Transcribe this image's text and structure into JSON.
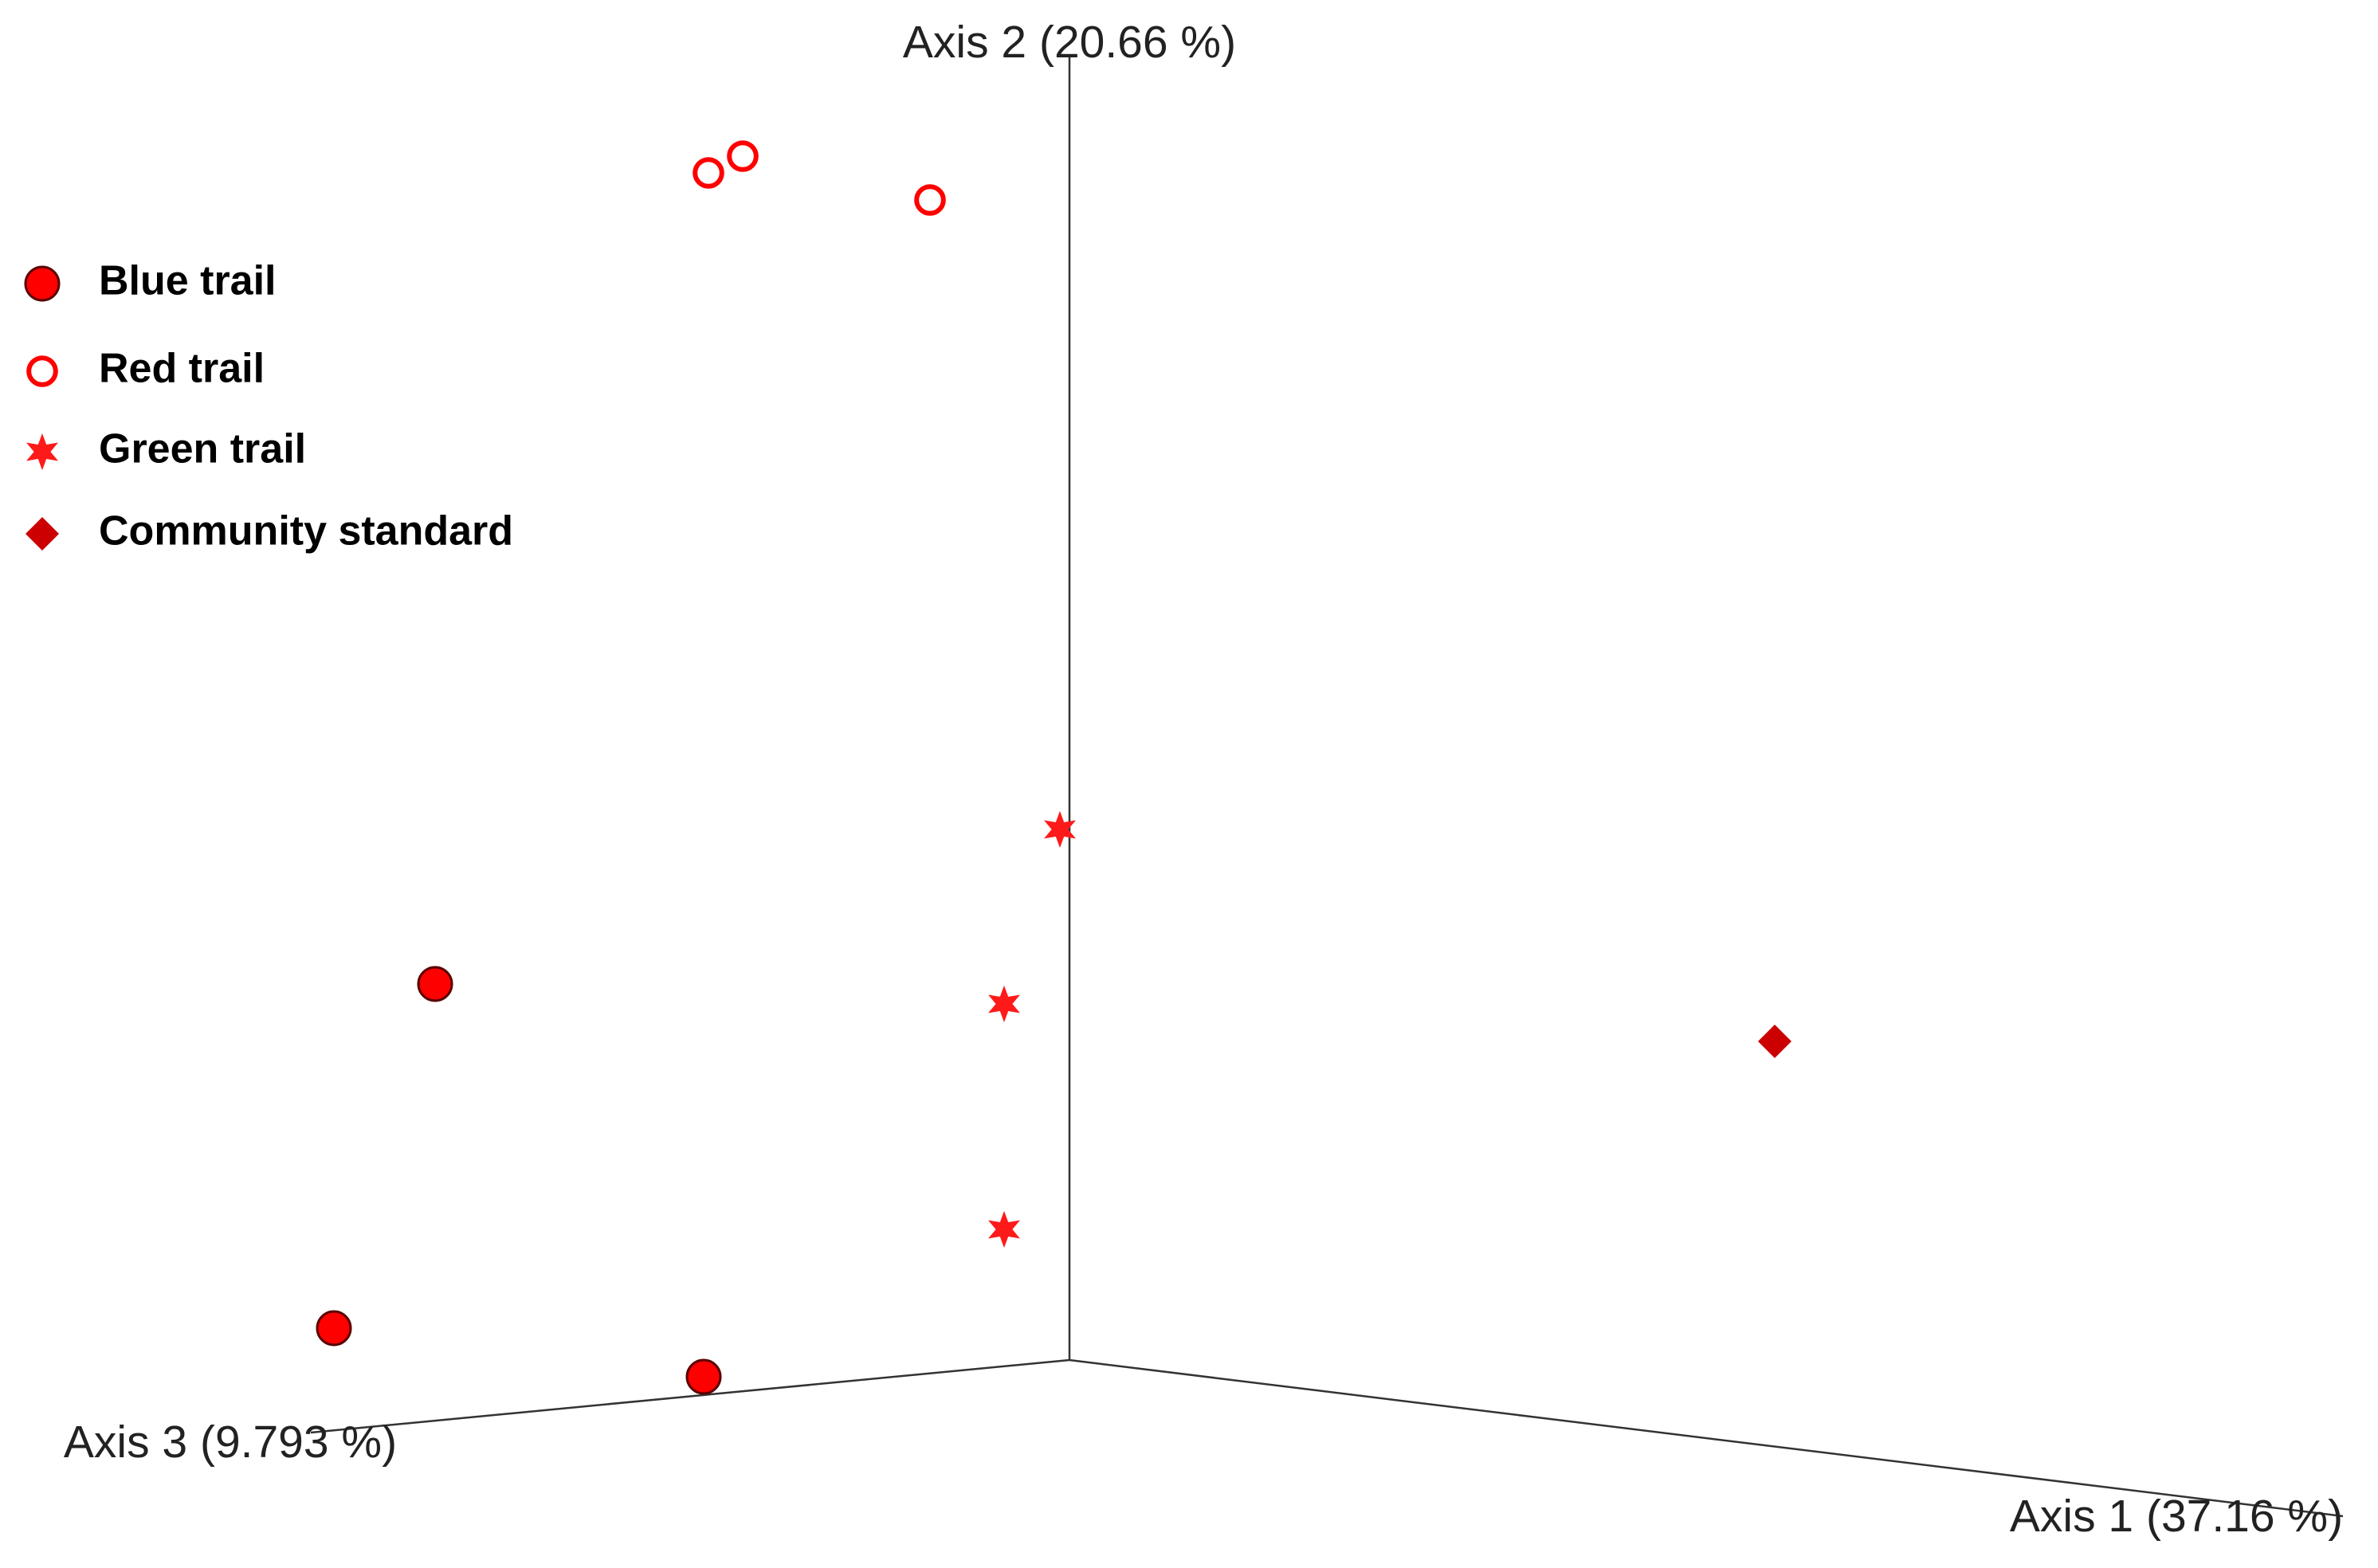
{
  "chart_data": {
    "type": "scatter3d",
    "axis_labels": [
      "Axis 1 (37.16 %)",
      "Axis 2 (20.66 %)",
      "Axis 3 (9.793 %)"
    ],
    "series": [
      {
        "name": "Blue trail",
        "color": "#ff0000",
        "marker": "circle"
      },
      {
        "name": "Red trail",
        "color": "#ff0000",
        "marker": "ring"
      },
      {
        "name": "Green trail",
        "color": "#ff1a1a",
        "marker": "star"
      },
      {
        "name": "Community standard",
        "color": "#cc0000",
        "marker": "diamond"
      }
    ],
    "legend": "upper left"
  }
}
